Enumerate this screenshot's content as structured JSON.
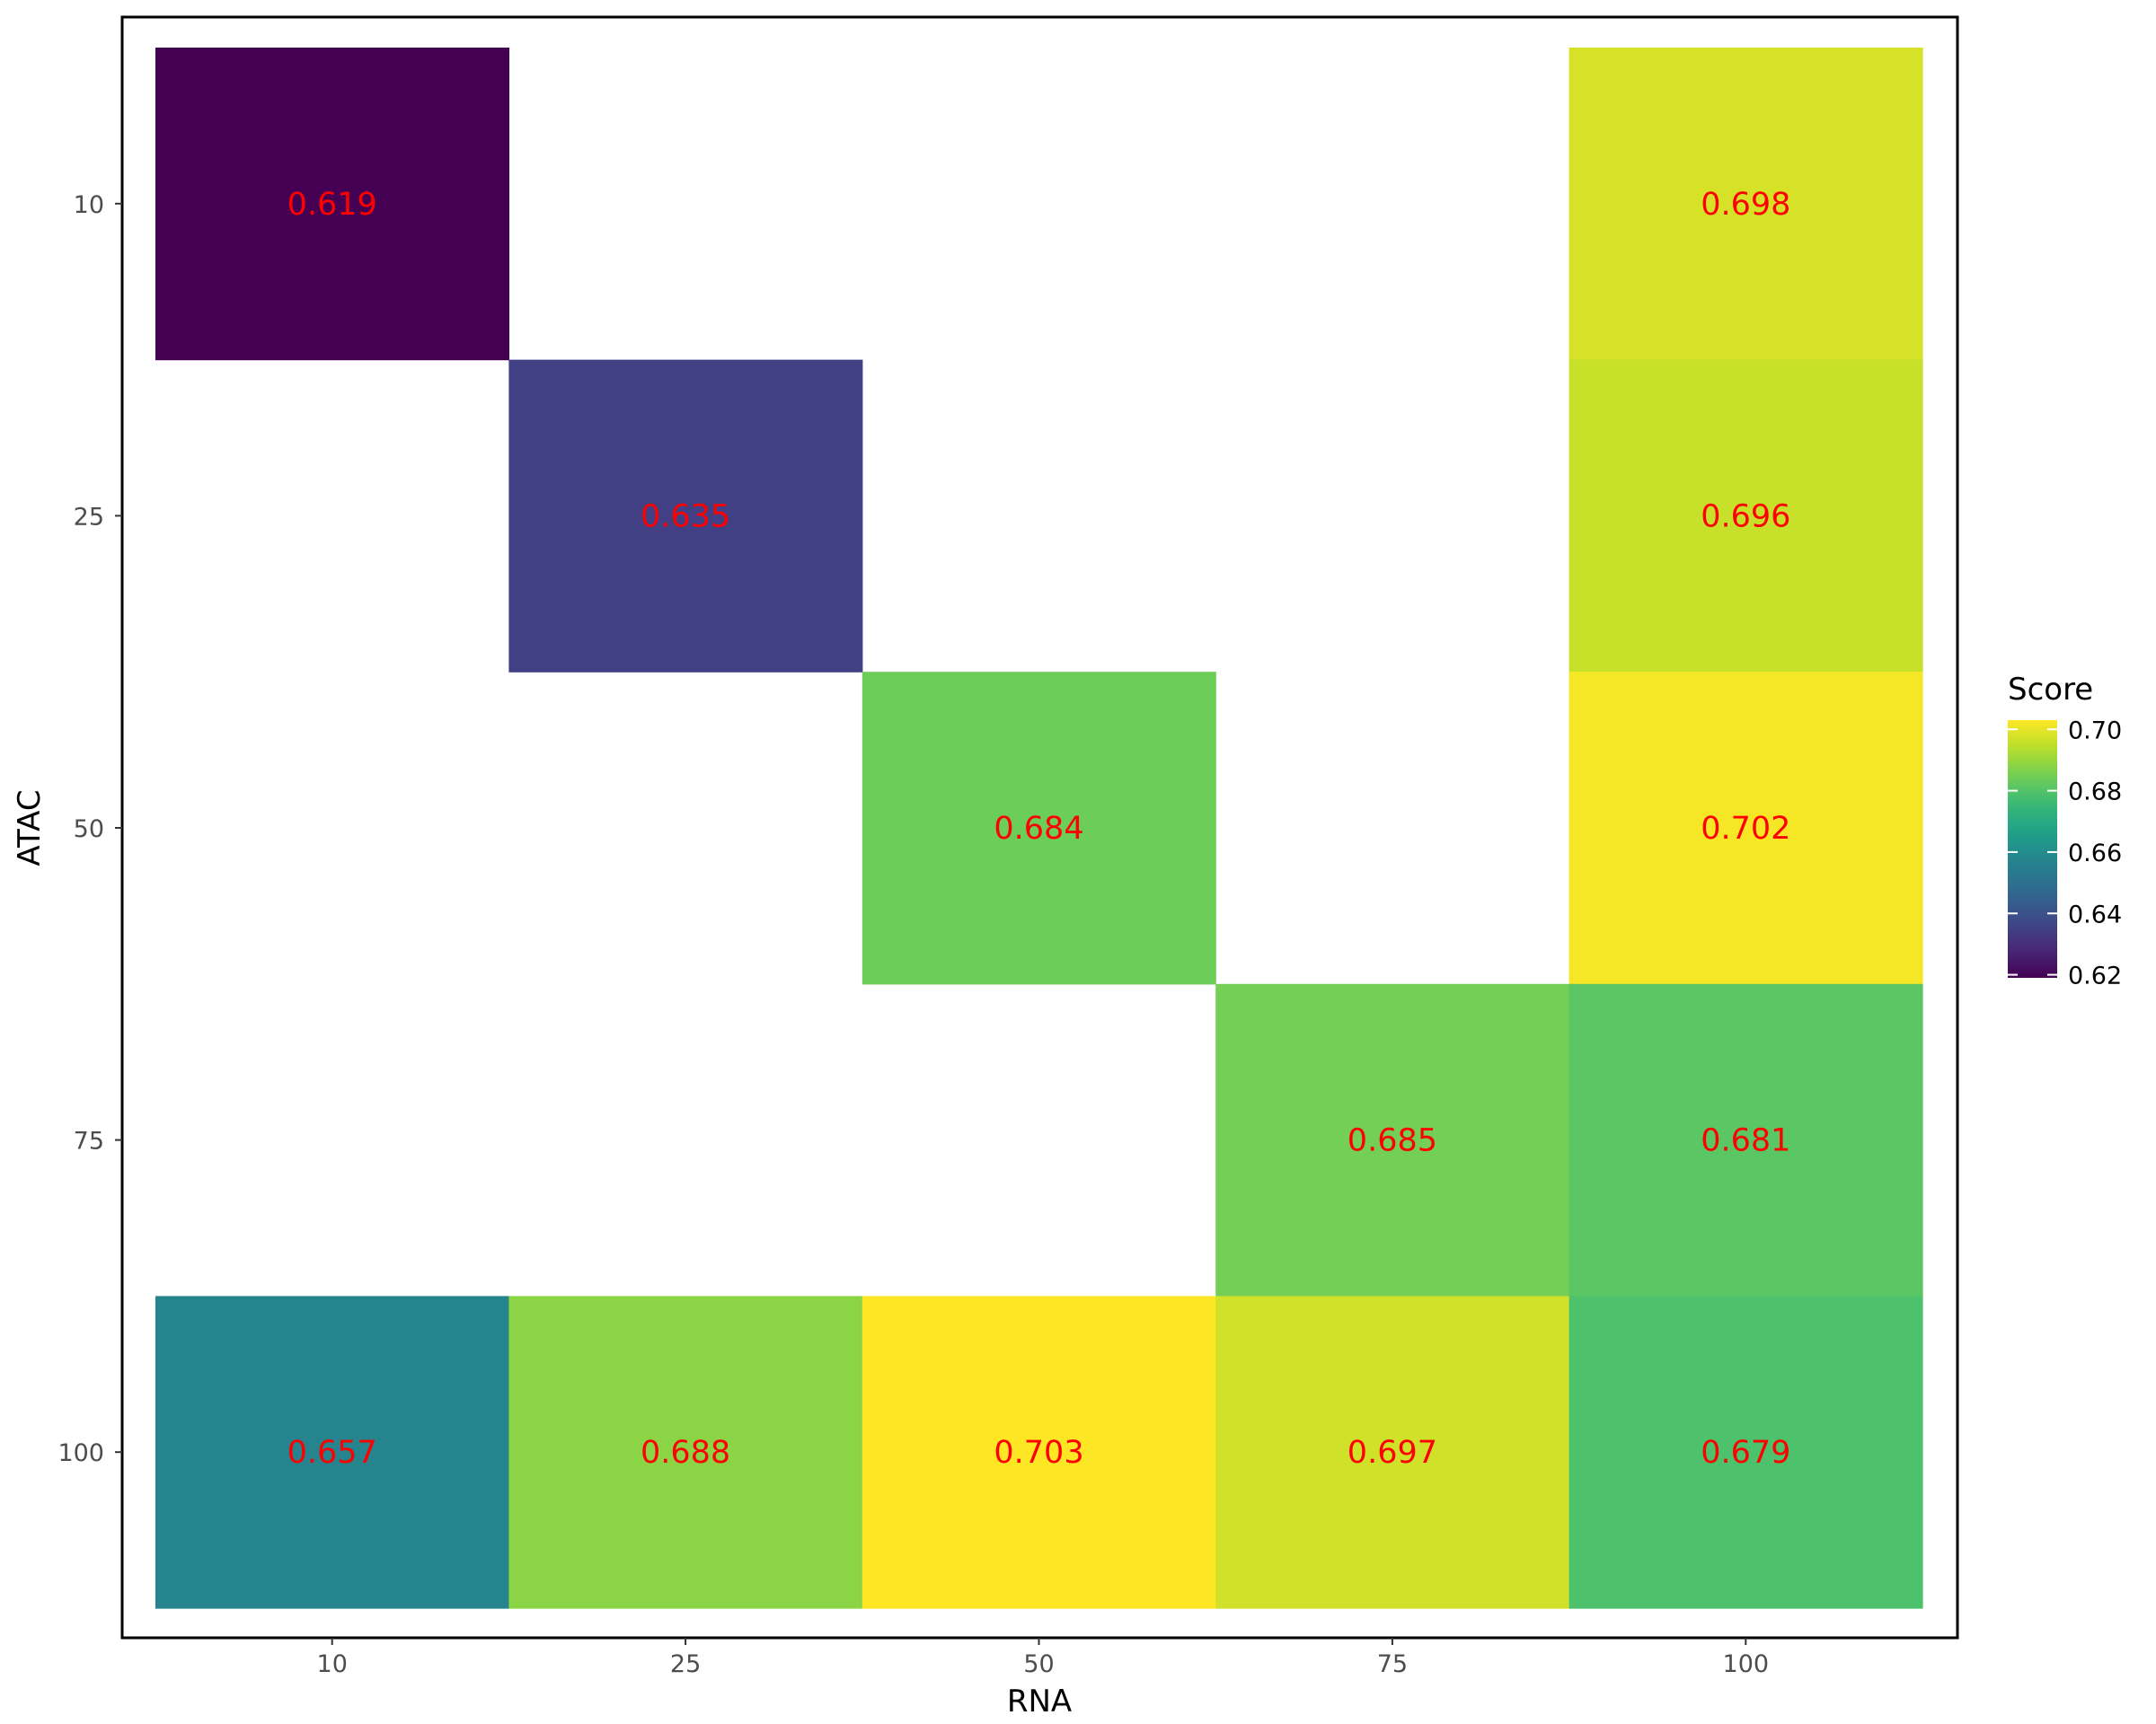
{
  "chart_data": {
    "type": "heatmap",
    "xlabel": "RNA",
    "ylabel": "ATAC",
    "x_categories": [
      "10",
      "25",
      "50",
      "75",
      "100"
    ],
    "y_categories": [
      "10",
      "25",
      "50",
      "75",
      "100"
    ],
    "cells": [
      {
        "x": "10",
        "y": "10",
        "value": 0.619,
        "label": "0.619"
      },
      {
        "x": "100",
        "y": "10",
        "value": 0.698,
        "label": "0.698"
      },
      {
        "x": "25",
        "y": "25",
        "value": 0.635,
        "label": "0.635"
      },
      {
        "x": "100",
        "y": "25",
        "value": 0.696,
        "label": "0.696"
      },
      {
        "x": "50",
        "y": "50",
        "value": 0.684,
        "label": "0.684"
      },
      {
        "x": "100",
        "y": "50",
        "value": 0.702,
        "label": "0.702"
      },
      {
        "x": "75",
        "y": "75",
        "value": 0.685,
        "label": "0.685"
      },
      {
        "x": "100",
        "y": "75",
        "value": 0.681,
        "label": "0.681"
      },
      {
        "x": "10",
        "y": "100",
        "value": 0.657,
        "label": "0.657"
      },
      {
        "x": "25",
        "y": "100",
        "value": 0.688,
        "label": "0.688"
      },
      {
        "x": "50",
        "y": "100",
        "value": 0.703,
        "label": "0.703"
      },
      {
        "x": "75",
        "y": "100",
        "value": 0.697,
        "label": "0.697"
      },
      {
        "x": "100",
        "y": "100",
        "value": 0.679,
        "label": "0.679"
      }
    ],
    "legend": {
      "title": "Score",
      "ticks": [
        0.62,
        0.64,
        0.66,
        0.68,
        0.7
      ],
      "tick_labels": [
        "0.62",
        "0.64",
        "0.66",
        "0.68",
        "0.70"
      ],
      "range": [
        0.619,
        0.703
      ],
      "colormap": "viridis",
      "placement": "right"
    },
    "label_color": "#ff0000"
  }
}
